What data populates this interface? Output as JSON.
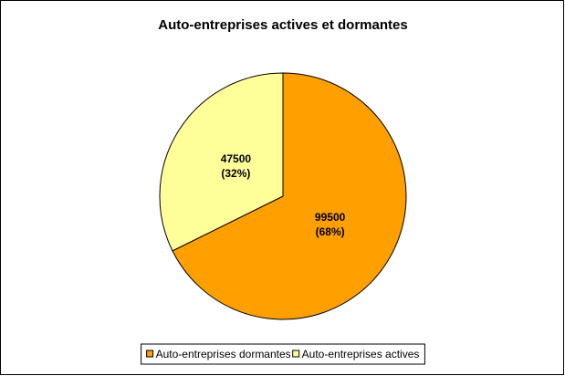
{
  "chart_data": {
    "type": "pie",
    "title": "Auto-entreprises actives et dormantes",
    "categories": [
      "Auto-entreprises dormantes",
      "Auto-entreprises actives"
    ],
    "values": [
      99500,
      47500
    ],
    "percent_labels": [
      "(68%)",
      "(32%)"
    ],
    "colors": [
      "#FF9F00",
      "#FFFF99"
    ],
    "legend": "bottom"
  }
}
